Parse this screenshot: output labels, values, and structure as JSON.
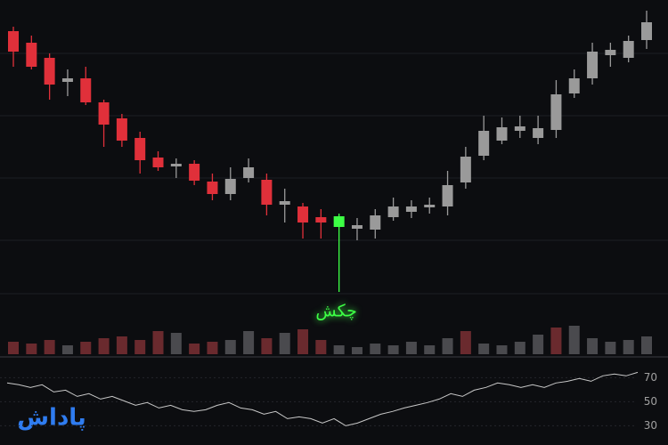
{
  "chart_data": [
    {
      "type": "candlestick",
      "open": [
        365,
        352,
        335,
        308,
        312,
        285,
        267,
        245,
        223,
        213,
        216,
        196,
        182,
        200,
        198,
        170,
        168,
        156,
        145,
        143,
        142,
        156,
        162,
        167,
        168,
        195,
        225,
        242,
        253,
        245,
        254,
        295,
        312,
        338,
        335,
        355
      ],
      "close": [
        342,
        325,
        305,
        312,
        285,
        260,
        242,
        220,
        212,
        216,
        197,
        182,
        199,
        212,
        170,
        174,
        150,
        150,
        157,
        147,
        158,
        168,
        168,
        170,
        192,
        224,
        253,
        257,
        258,
        256,
        294,
        312,
        342,
        344,
        354,
        375
      ],
      "high": [
        370,
        360,
        340,
        322,
        325,
        288,
        272,
        252,
        230,
        222,
        220,
        205,
        212,
        222,
        205,
        188,
        172,
        165,
        160,
        155,
        165,
        178,
        175,
        178,
        208,
        235,
        270,
        268,
        270,
        270,
        310,
        322,
        352,
        352,
        360,
        388
      ],
      "low": [
        325,
        322,
        288,
        292,
        282,
        235,
        235,
        205,
        208,
        200,
        192,
        175,
        175,
        195,
        158,
        150,
        132,
        132,
        72,
        130,
        132,
        152,
        155,
        160,
        158,
        188,
        220,
        238,
        245,
        238,
        245,
        290,
        305,
        325,
        330,
        345
      ],
      "colors": [
        "#e0303a",
        "#e0303a",
        "#e0303a",
        "#9a9a9a",
        "#e0303a",
        "#e0303a",
        "#e0303a",
        "#e0303a",
        "#e0303a",
        "#9a9a9a",
        "#e0303a",
        "#e0303a",
        "#9a9a9a",
        "#9a9a9a",
        "#e0303a",
        "#9a9a9a",
        "#e0303a",
        "#e0303a",
        "#3dff45",
        "#9a9a9a",
        "#9a9a9a",
        "#9a9a9a",
        "#9a9a9a",
        "#9a9a9a",
        "#9a9a9a",
        "#9a9a9a",
        "#9a9a9a",
        "#9a9a9a",
        "#9a9a9a",
        "#9a9a9a",
        "#9a9a9a",
        "#9a9a9a",
        "#9a9a9a",
        "#9a9a9a",
        "#9a9a9a",
        "#9a9a9a"
      ],
      "ylim": [
        0,
        400
      ],
      "annotation": "چکش",
      "annotation_color": "#3dff45"
    },
    {
      "type": "bar",
      "values": [
        14,
        12,
        16,
        10,
        14,
        18,
        20,
        16,
        26,
        24,
        12,
        14,
        16,
        26,
        18,
        24,
        28,
        16,
        10,
        8,
        12,
        10,
        14,
        10,
        18,
        26,
        12,
        10,
        14,
        22,
        30,
        32,
        18,
        14,
        16,
        20
      ],
      "colors": [
        "#6a2a2e",
        "#6a2a2e",
        "#6a2a2e",
        "#4a4a4e",
        "#6a2a2e",
        "#6a2a2e",
        "#6a2a2e",
        "#6a2a2e",
        "#6a2a2e",
        "#4a4a4e",
        "#6a2a2e",
        "#6a2a2e",
        "#4a4a4e",
        "#4a4a4e",
        "#6a2a2e",
        "#4a4a4e",
        "#6a2a2e",
        "#6a2a2e",
        "#4a4a4e",
        "#4a4a4e",
        "#4a4a4e",
        "#4a4a4e",
        "#4a4a4e",
        "#4a4a4e",
        "#4a4a4e",
        "#6a2a2e",
        "#4a4a4e",
        "#4a4a4e",
        "#4a4a4e",
        "#4a4a4e",
        "#6a2a2e",
        "#4a4a4e",
        "#4a4a4e",
        "#4a4a4e",
        "#4a4a4e",
        "#4a4a4e"
      ],
      "ylim": [
        0,
        40
      ]
    },
    {
      "type": "line",
      "values": [
        65.6,
        64.1,
        61.9,
        64.1,
        58.1,
        59.6,
        54.4,
        56.7,
        52.2,
        54.4,
        50.7,
        47.0,
        49.3,
        44.8,
        47.0,
        43.3,
        41.9,
        43.3,
        47.0,
        49.3,
        44.8,
        43.3,
        39.6,
        41.9,
        35.9,
        37.4,
        35.9,
        32.2,
        35.9,
        30.0,
        32.2,
        35.9,
        39.6,
        41.9,
        44.8,
        47.0,
        49.3,
        52.2,
        56.7,
        54.4,
        59.6,
        61.9,
        65.6,
        64.1,
        61.9,
        64.1,
        61.9,
        65.6,
        67.0,
        69.3,
        67.0,
        71.5,
        73.0,
        71.5,
        74.4
      ],
      "color": "#c8c8c8",
      "ylim": [
        14,
        88
      ],
      "yticks": [
        70,
        50,
        30
      ]
    }
  ],
  "logo": "پاداش"
}
